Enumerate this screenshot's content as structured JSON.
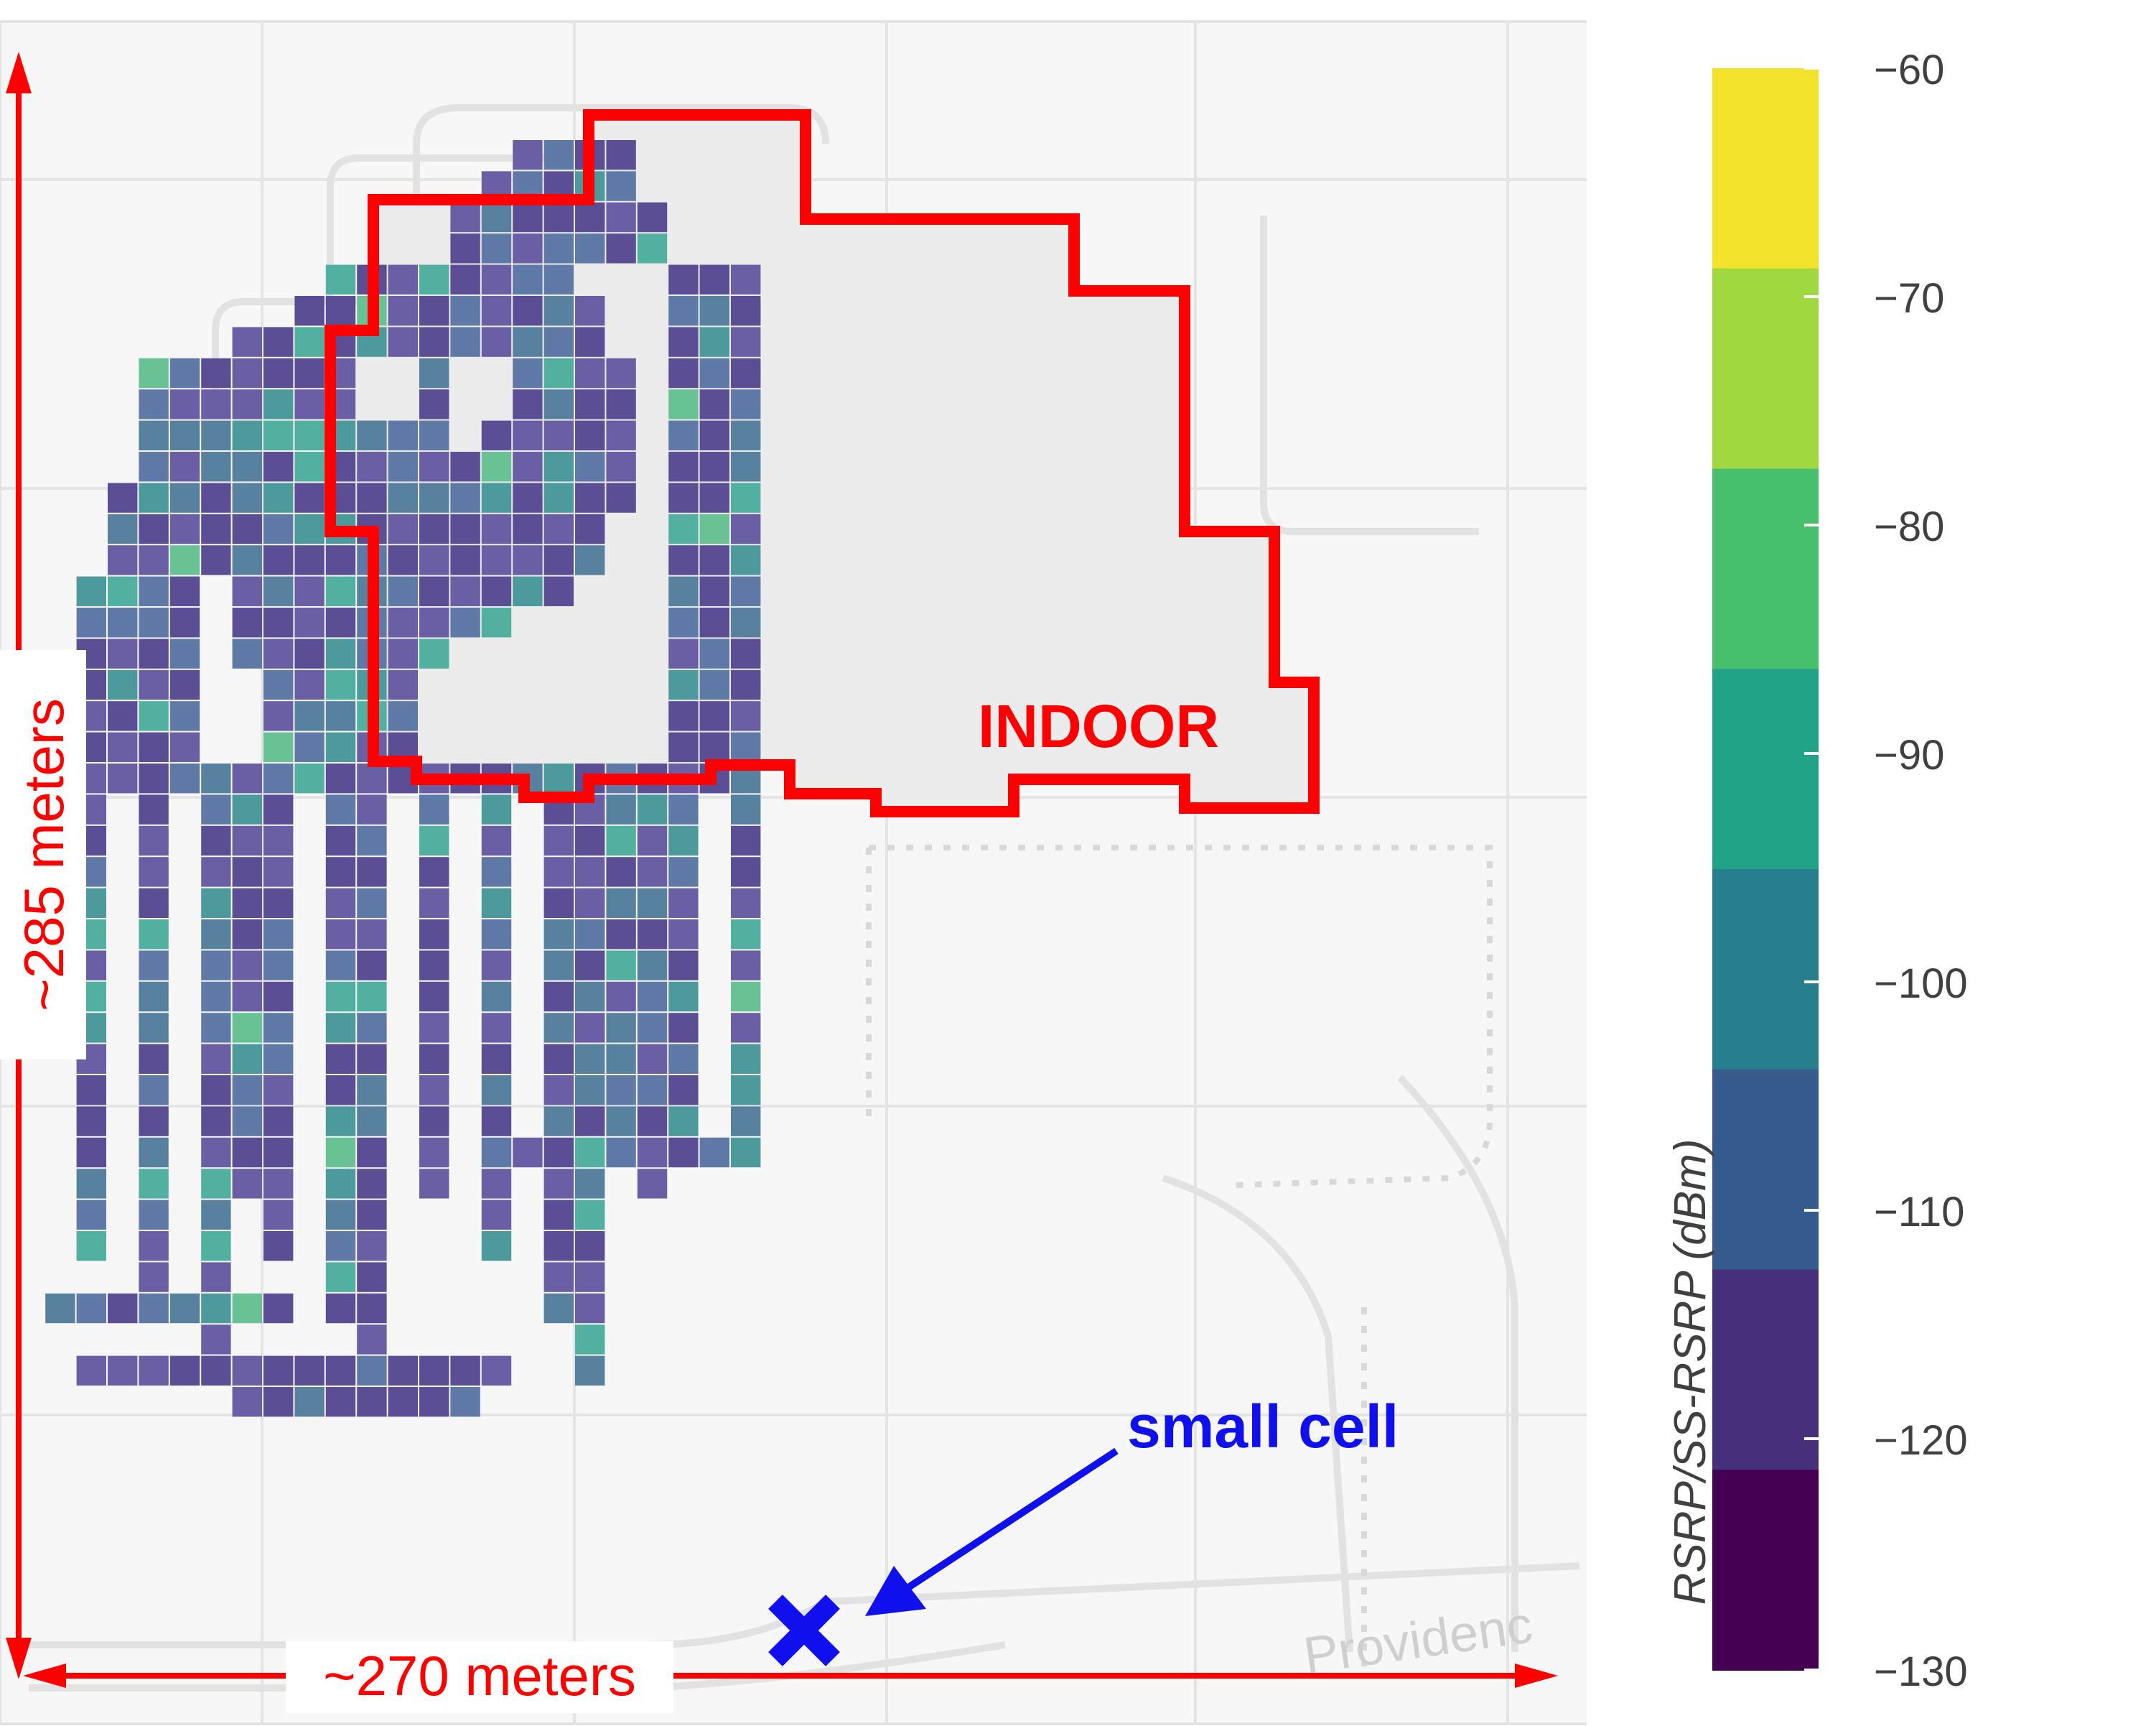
{
  "map": {
    "indoor_label": "INDOOR",
    "small_cell_label": "small cell",
    "street_label": "Providenc",
    "height_label": "~285 meters",
    "width_label": "~270 meters"
  },
  "colorbar": {
    "title": "RSRP/SS-RSRP (dBm)",
    "ticks": [
      "-60",
      "-70",
      "-80",
      "-90",
      "-100",
      "-110",
      "-120",
      "-130"
    ],
    "colors": [
      "#f3e12a",
      "#9fd83f",
      "#48bf6c",
      "#20a386",
      "#277f8e",
      "#365c8d",
      "#46307c",
      "#440154"
    ]
  },
  "colors": {
    "annotation_red": "#ff0000",
    "small_cell_blue": "#1010ee",
    "indoor_fill": "#ececec"
  }
}
